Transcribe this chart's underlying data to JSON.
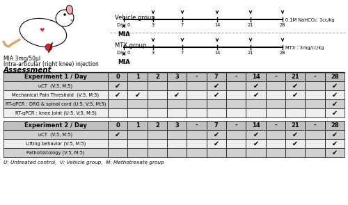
{
  "fig_width": 5.0,
  "fig_height": 2.95,
  "dpi": 100,
  "vehicle_label": "Vehicle group",
  "vehicle_drug_label": "0.1M NaHCO₃: 1cc/kg",
  "mtx_label": "MTX group",
  "mtx_drug_label": "MTX : 3mg/cc/kg",
  "mia_label": "MIA",
  "rat_label1": "MIA 3mg/50μl",
  "rat_label2": "Intra-articular (right knee) injection",
  "assessment_label": "Assessment",
  "exp1_header": "Experiment 1 / Day",
  "exp1_cols": [
    "0",
    "1",
    "2",
    "3",
    "-",
    "7",
    "-",
    "14",
    "-",
    "21",
    "-",
    "28"
  ],
  "exp1_rows": [
    {
      "label": "uCT  (V:5, M:5)",
      "checks": [
        1,
        0,
        0,
        0,
        0,
        1,
        0,
        1,
        0,
        1,
        0,
        1
      ]
    },
    {
      "label": "Mechanical Pain Threshold  (V:5, M:5)",
      "checks": [
        1,
        1,
        0,
        1,
        0,
        1,
        0,
        1,
        0,
        1,
        0,
        1
      ]
    },
    {
      "label": "RT-qPCR : DRG & spinal cord (U:5, V:5, M:5)",
      "checks": [
        0,
        0,
        0,
        0,
        0,
        0,
        0,
        0,
        0,
        0,
        0,
        1
      ]
    },
    {
      "label": "RT-qPCR : knee joint (U:5, V:5, M:5)",
      "checks": [
        0,
        0,
        0,
        0,
        0,
        0,
        0,
        0,
        0,
        0,
        0,
        1
      ]
    }
  ],
  "exp2_header": "Experiment 2 / Day",
  "exp2_cols": [
    "0",
    "1",
    "2",
    "3",
    "-",
    "7",
    "-",
    "14",
    "-",
    "21",
    "-",
    "28"
  ],
  "exp2_rows": [
    {
      "label": "uCT  (V:5, M:5)",
      "checks": [
        1,
        0,
        0,
        0,
        0,
        1,
        0,
        1,
        0,
        1,
        0,
        1
      ]
    },
    {
      "label": "Lifting behavior (V:5, M:5)",
      "checks": [
        0,
        0,
        0,
        0,
        0,
        1,
        0,
        1,
        0,
        1,
        0,
        1
      ]
    },
    {
      "label": "Pathohistology (V:5, M:5)",
      "checks": [
        0,
        0,
        0,
        0,
        0,
        0,
        0,
        0,
        0,
        0,
        0,
        1
      ]
    }
  ],
  "footer": "U: Untreated control,  V: Vehicle group,  M: Methotrexate group",
  "header_bg": "#c0c0c0",
  "row_bg_dark": "#d0d0d0",
  "row_bg_light": "#eeeeee",
  "check_color": "#000000"
}
